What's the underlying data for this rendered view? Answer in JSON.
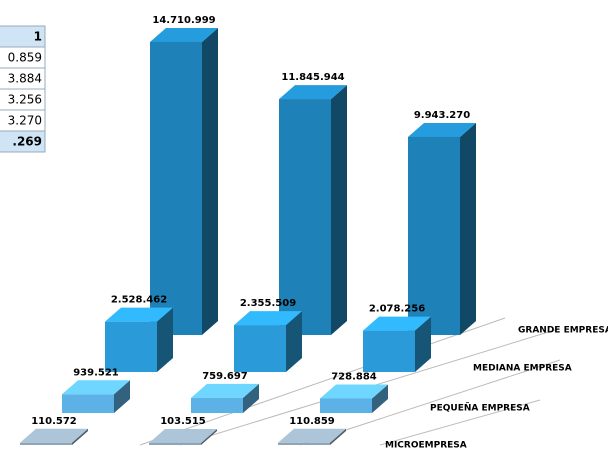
{
  "table": {
    "rows": [
      "1",
      "0.859",
      "3.884",
      "3.256",
      "3.270",
      ".269"
    ]
  },
  "chart_data": {
    "type": "bar3d",
    "categories": [
      null,
      null,
      null
    ],
    "series": [
      {
        "name": "GRANDE EMPRESA",
        "color": "#1e82b8",
        "values": [
          14710999,
          11845944,
          9943270
        ],
        "value_labels": [
          "14.710.999",
          "11.845.944",
          "9.943.270"
        ]
      },
      {
        "name": "MEDIANA EMPRESA",
        "color": "#2a9bd8",
        "values": [
          2528462,
          2355509,
          2078256
        ],
        "value_labels": [
          "2.528.462",
          "2.355.509",
          "2.078.256"
        ]
      },
      {
        "name": "PEQUEÑA EMPRESA",
        "color": "#5cb2e6",
        "values": [
          939521,
          759697,
          728884
        ],
        "value_labels": [
          "939.521",
          "759.697",
          "728.884"
        ]
      },
      {
        "name": "MICROEMPRESA",
        "color": "#8fa4b4",
        "values": [
          110572,
          103515,
          110859
        ],
        "value_labels": [
          "110.572",
          "103.515",
          "110.859"
        ]
      }
    ]
  }
}
